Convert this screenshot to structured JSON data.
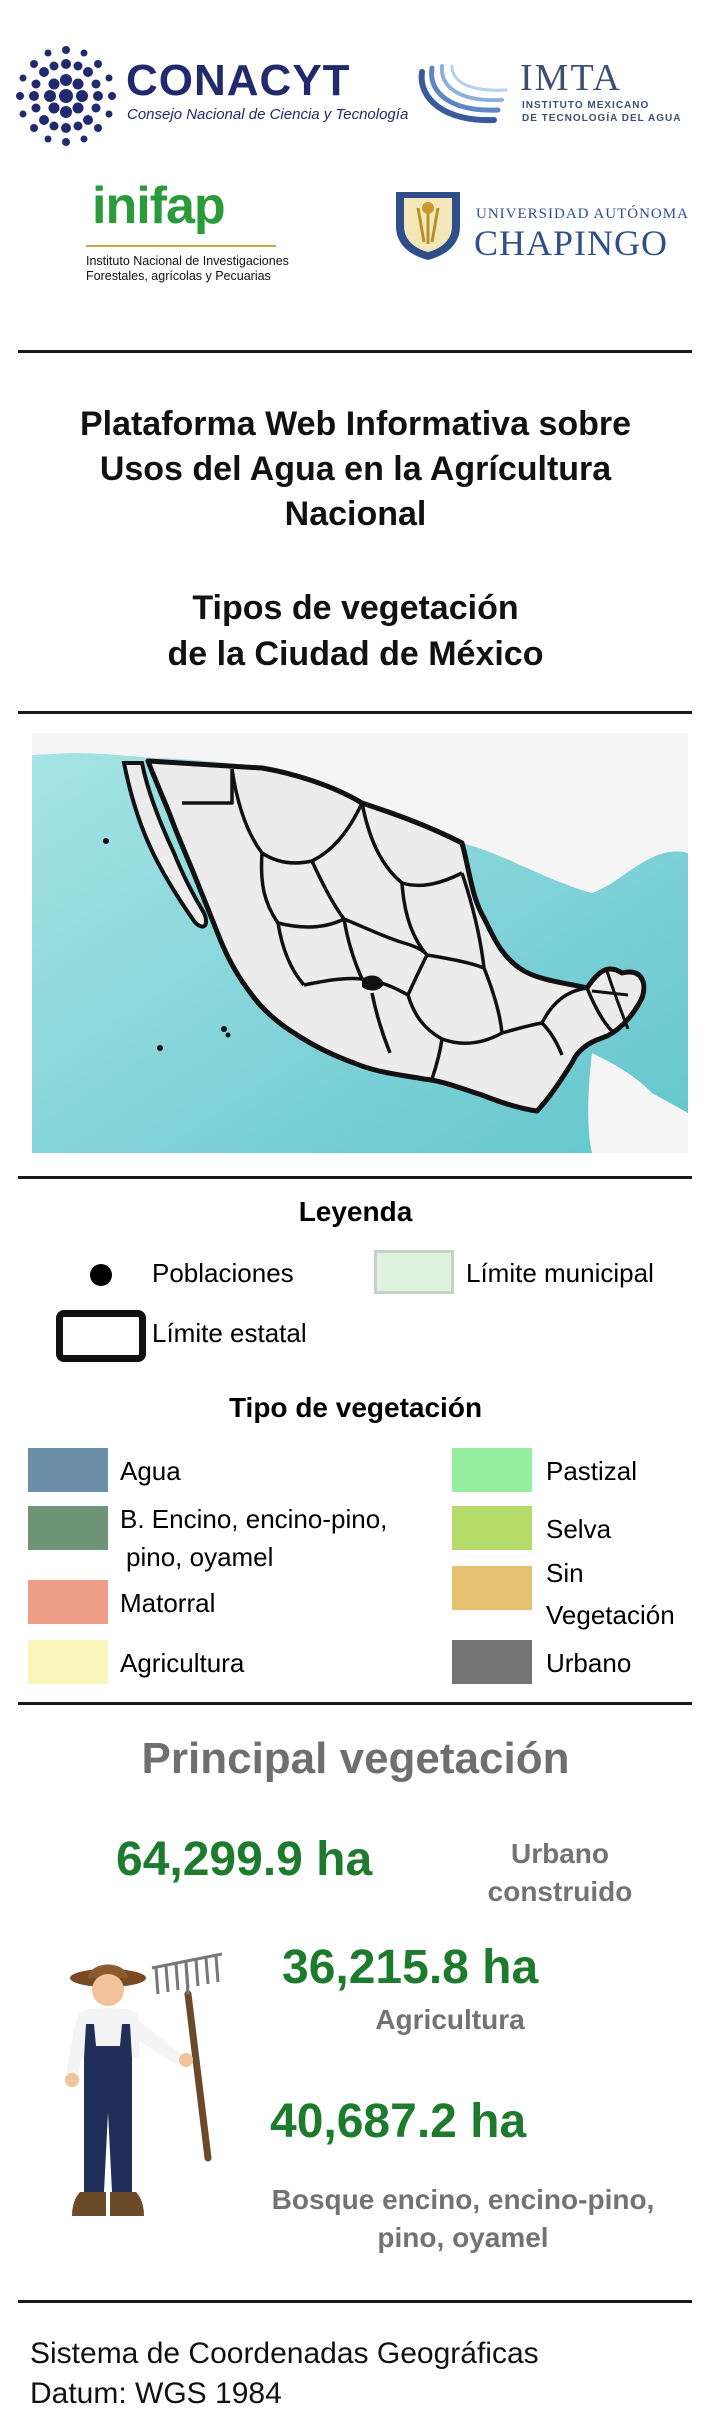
{
  "logos": {
    "conacyt": {
      "name": "CONACYT",
      "subtitle": "Consejo Nacional de Ciencia y Tecnología"
    },
    "imta": {
      "name": "IMTA",
      "subtitle_l1": "INSTITUTO MEXICANO",
      "subtitle_l2": "DE TECNOLOGÍA DEL AGUA"
    },
    "inifap": {
      "name": "inifap",
      "subtitle_l1": "Instituto Nacional de Investigaciones",
      "subtitle_l2": "Forestales, agrícolas y Pecuarias"
    },
    "chapingo": {
      "line1": "UNIVERSIDAD AUTÓNOMA",
      "line2": "CHAPINGO"
    }
  },
  "header": {
    "title_l1": "Plataforma Web Informativa sobre",
    "title_l2": "Usos del Agua en la Agrícultura",
    "title_l3": "Nacional",
    "subtitle_l1": "Tipos de vegetación",
    "subtitle_l2": "de la Ciudad de México"
  },
  "map": {
    "icon": "mexico-states-map",
    "land_color": "#f2f2f2",
    "water_color": "#7fd3d8"
  },
  "legend": {
    "title": "Leyenda",
    "poblaciones": "Poblaciones",
    "limite_municipal": "Límite municipal",
    "limite_estatal": "Límite estatal",
    "veg_title": "Tipo de vegetación",
    "vegetation": [
      {
        "label_l1": "Agua",
        "label_l2": "",
        "color": "#6b8fa8"
      },
      {
        "label_l1": "B. Encino, encino-pino,",
        "label_l2": "pino, oyamel",
        "color": "#6e9478"
      },
      {
        "label_l1": "Matorral",
        "label_l2": "",
        "color": "#ec9f86"
      },
      {
        "label_l1": "Agricultura",
        "label_l2": "",
        "color": "#faf5ba"
      },
      {
        "label_l1": "Pastizal",
        "label_l2": "",
        "color": "#95eea0"
      },
      {
        "label_l1": "Selva",
        "label_l2": "",
        "color": "#b6db6a"
      },
      {
        "label_l1": "Sin",
        "label_l2": "Vegetación",
        "color": "#e5c070"
      },
      {
        "label_l1": "Urbano",
        "label_l2": "",
        "color": "#747474"
      }
    ]
  },
  "stats": {
    "title": "Principal vegetación",
    "items": [
      {
        "value": "64,299.9  ha",
        "label_l1": "Urbano",
        "label_l2": "construido"
      },
      {
        "value": "36,215.8 ha",
        "label_l1": "Agricultura",
        "label_l2": ""
      },
      {
        "value": "40,687.2  ha",
        "label_l1": "Bosque encino, encino-pino,",
        "label_l2": "pino, oyamel"
      }
    ],
    "illustration": "farmer-with-rake-icon"
  },
  "footer": {
    "line1": "Sistema de Coordenadas Geográficas",
    "line2": "Datum: WGS 1984"
  }
}
